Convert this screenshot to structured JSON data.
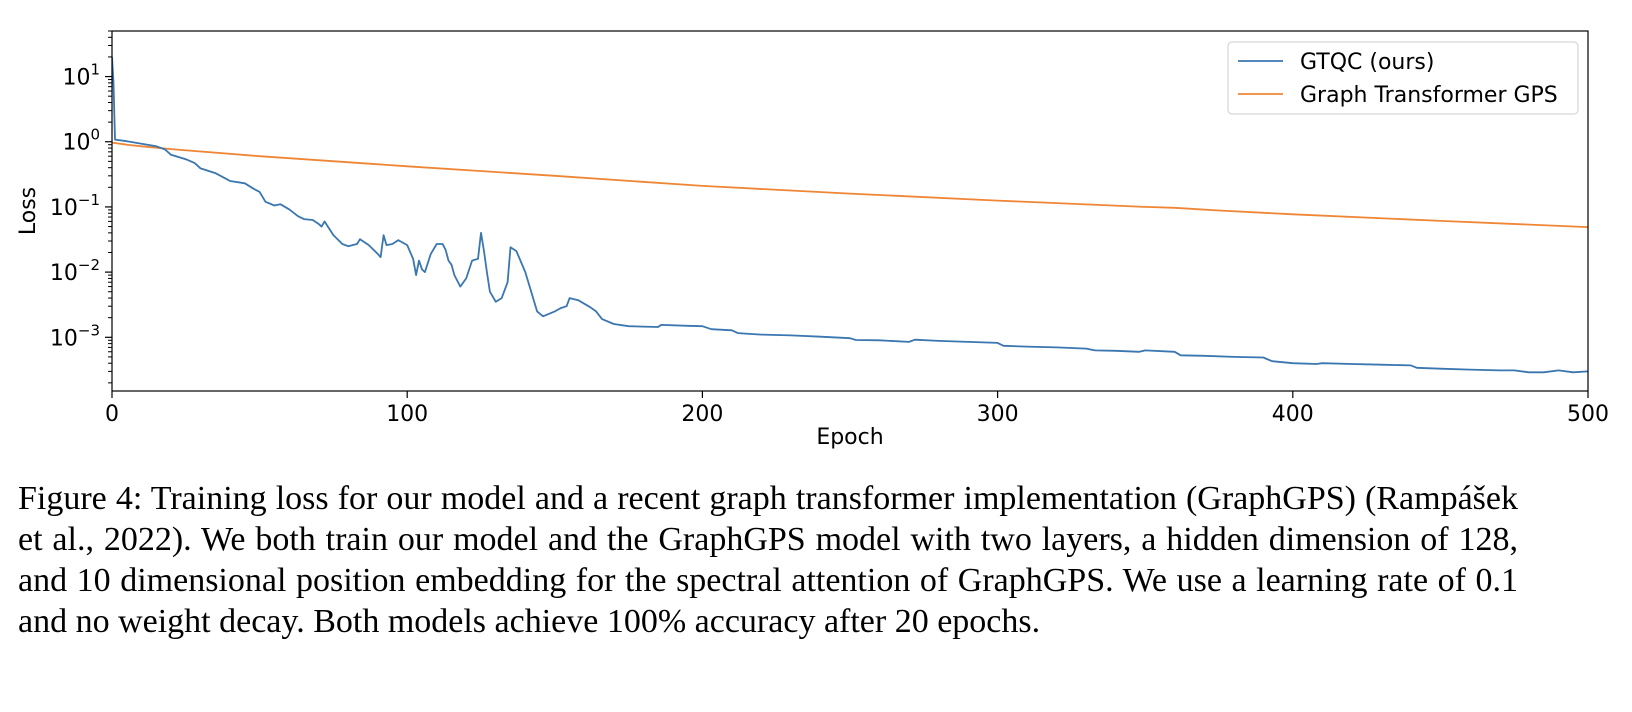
{
  "chart_data": {
    "type": "line",
    "xlabel": "Epoch",
    "ylabel": "Loss",
    "xlim": [
      0,
      500
    ],
    "ylim": [
      0.00015,
      50
    ],
    "yscale": "log",
    "xticks": [
      "0",
      "100",
      "200",
      "300",
      "400",
      "500"
    ],
    "yticks": [
      {
        "base": "10",
        "exp": "1",
        "value": 10
      },
      {
        "base": "10",
        "exp": "0",
        "value": 1
      },
      {
        "base": "10",
        "exp": "−1",
        "value": 0.1
      },
      {
        "base": "10",
        "exp": "−2",
        "value": 0.01
      },
      {
        "base": "10",
        "exp": "−3",
        "value": 0.001
      }
    ],
    "legend_position": "top-right",
    "grid": false,
    "series": [
      {
        "name": "GTQC (ours)",
        "color": "#3a76af",
        "points": [
          [
            0,
            20
          ],
          [
            0.5,
            8
          ],
          [
            1,
            1.08
          ],
          [
            5,
            1.02
          ],
          [
            10,
            0.93
          ],
          [
            15,
            0.85
          ],
          [
            18,
            0.76
          ],
          [
            20,
            0.63
          ],
          [
            25,
            0.54
          ],
          [
            28,
            0.47
          ],
          [
            30,
            0.39
          ],
          [
            35,
            0.33
          ],
          [
            38,
            0.28
          ],
          [
            40,
            0.25
          ],
          [
            45,
            0.23
          ],
          [
            48,
            0.19
          ],
          [
            50,
            0.17
          ],
          [
            52,
            0.12
          ],
          [
            55,
            0.105
          ],
          [
            57,
            0.11
          ],
          [
            60,
            0.092
          ],
          [
            63,
            0.072
          ],
          [
            65,
            0.065
          ],
          [
            68,
            0.063
          ],
          [
            70,
            0.055
          ],
          [
            71,
            0.05
          ],
          [
            72,
            0.06
          ],
          [
            75,
            0.037
          ],
          [
            78,
            0.027
          ],
          [
            80,
            0.025
          ],
          [
            83,
            0.027
          ],
          [
            84,
            0.032
          ],
          [
            87,
            0.026
          ],
          [
            90,
            0.019
          ],
          [
            91,
            0.017
          ],
          [
            92,
            0.037
          ],
          [
            93,
            0.026
          ],
          [
            95,
            0.027
          ],
          [
            97,
            0.031
          ],
          [
            100,
            0.026
          ],
          [
            102,
            0.016
          ],
          [
            103,
            0.009
          ],
          [
            104,
            0.015
          ],
          [
            105,
            0.011
          ],
          [
            106,
            0.01
          ],
          [
            108,
            0.019
          ],
          [
            110,
            0.027
          ],
          [
            112,
            0.027
          ],
          [
            113,
            0.022
          ],
          [
            114,
            0.015
          ],
          [
            115,
            0.013
          ],
          [
            116,
            0.009
          ],
          [
            118,
            0.006
          ],
          [
            120,
            0.008
          ],
          [
            122,
            0.015
          ],
          [
            124,
            0.016
          ],
          [
            125,
            0.04
          ],
          [
            126,
            0.021
          ],
          [
            127,
            0.01
          ],
          [
            128,
            0.005
          ],
          [
            130,
            0.0035
          ],
          [
            132,
            0.004
          ],
          [
            134,
            0.007
          ],
          [
            135,
            0.024
          ],
          [
            137,
            0.021
          ],
          [
            140,
            0.01
          ],
          [
            142,
            0.005
          ],
          [
            144,
            0.0025
          ],
          [
            146,
            0.0021
          ],
          [
            150,
            0.0025
          ],
          [
            152,
            0.0028
          ],
          [
            154,
            0.003
          ],
          [
            155,
            0.004
          ],
          [
            158,
            0.0037
          ],
          [
            162,
            0.0029
          ],
          [
            164,
            0.0025
          ],
          [
            166,
            0.0019
          ],
          [
            170,
            0.0016
          ],
          [
            175,
            0.00148
          ],
          [
            180,
            0.00146
          ],
          [
            185,
            0.00144
          ],
          [
            186,
            0.00155
          ],
          [
            195,
            0.0015
          ],
          [
            200,
            0.00148
          ],
          [
            203,
            0.00133
          ],
          [
            210,
            0.00128
          ],
          [
            212,
            0.00116
          ],
          [
            220,
            0.0011
          ],
          [
            230,
            0.00107
          ],
          [
            240,
            0.00102
          ],
          [
            250,
            0.00097
          ],
          [
            252,
            0.00091
          ],
          [
            260,
            0.0009
          ],
          [
            270,
            0.00085
          ],
          [
            272,
            0.00092
          ],
          [
            280,
            0.00088
          ],
          [
            290,
            0.00085
          ],
          [
            300,
            0.00082
          ],
          [
            302,
            0.00074
          ],
          [
            310,
            0.00072
          ],
          [
            320,
            0.0007
          ],
          [
            330,
            0.00067
          ],
          [
            333,
            0.00063
          ],
          [
            340,
            0.00062
          ],
          [
            348,
            0.0006
          ],
          [
            350,
            0.00063
          ],
          [
            360,
            0.0006
          ],
          [
            362,
            0.00053
          ],
          [
            370,
            0.00052
          ],
          [
            380,
            0.0005
          ],
          [
            390,
            0.00049
          ],
          [
            393,
            0.00043
          ],
          [
            400,
            0.0004
          ],
          [
            408,
            0.00039
          ],
          [
            410,
            0.0004
          ],
          [
            420,
            0.00039
          ],
          [
            430,
            0.00038
          ],
          [
            440,
            0.00037
          ],
          [
            442,
            0.00034
          ],
          [
            450,
            0.00033
          ],
          [
            460,
            0.00032
          ],
          [
            470,
            0.00031
          ],
          [
            475,
            0.00031
          ],
          [
            480,
            0.00029
          ],
          [
            485,
            0.00029
          ],
          [
            490,
            0.00031
          ],
          [
            495,
            0.00029
          ],
          [
            500,
            0.0003
          ]
        ]
      },
      {
        "name": "Graph Transformer GPS",
        "color": "#ef8636",
        "points": [
          [
            0,
            0.97
          ],
          [
            5,
            0.9
          ],
          [
            10,
            0.85
          ],
          [
            15,
            0.81
          ],
          [
            20,
            0.77
          ],
          [
            50,
            0.6
          ],
          [
            100,
            0.42
          ],
          [
            150,
            0.3
          ],
          [
            200,
            0.21
          ],
          [
            250,
            0.16
          ],
          [
            300,
            0.125
          ],
          [
            350,
            0.1
          ],
          [
            360,
            0.097
          ],
          [
            375,
            0.088
          ],
          [
            400,
            0.077
          ],
          [
            450,
            0.061
          ],
          [
            500,
            0.049
          ]
        ]
      }
    ]
  },
  "caption": "Figure 4: Training loss for our model and a recent graph transformer implementation (GraphGPS) (Rampášek et al., 2022). We both train our model and the GraphGPS model with two layers, a hidden dimension of 128, and 10 dimensional position embedding for the spectral attention of GraphGPS. We use a learning rate of 0.1 and no weight decay.  Both models achieve 100% accuracy after 20 epochs."
}
